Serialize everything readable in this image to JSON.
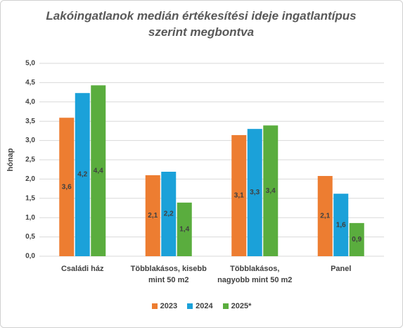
{
  "chart_data": {
    "type": "bar",
    "title": "Lakóingatlanok medián értékesítési ideje ingatlantípus szerint megbontva",
    "ylabel": "hónap",
    "categories": [
      "Családi ház",
      "Többlakásos, kisebb mint 50 m2",
      "Többlakásos, nagyobb mint 50 m2",
      "Panel"
    ],
    "series": [
      {
        "name": "2023",
        "color": "#ed7d31",
        "values": [
          3.59,
          2.1,
          3.14,
          2.08
        ],
        "value_labels": [
          "3,6",
          "2,1",
          "3,1",
          "2,1"
        ]
      },
      {
        "name": "2024",
        "color": "#1ba1d9",
        "values": [
          4.23,
          2.19,
          3.3,
          1.62
        ],
        "value_labels": [
          "4,2",
          "2,2",
          "3,3",
          "1,6"
        ]
      },
      {
        "name": "2025*",
        "color": "#5aad3e",
        "values": [
          4.43,
          1.39,
          3.39,
          0.86
        ],
        "value_labels": [
          "4,4",
          "1,4",
          "3,4",
          "0,9"
        ]
      }
    ],
    "ylim": [
      0,
      5
    ],
    "yticks": [
      {
        "value": 0,
        "label": "0,0"
      },
      {
        "value": 0.5,
        "label": "0,5"
      },
      {
        "value": 1,
        "label": "1,0"
      },
      {
        "value": 1.5,
        "label": "1,5"
      },
      {
        "value": 2,
        "label": "2,0"
      },
      {
        "value": 2.5,
        "label": "2,5"
      },
      {
        "value": 3,
        "label": "3,0"
      },
      {
        "value": 3.5,
        "label": "3,5"
      },
      {
        "value": 4,
        "label": "4,0"
      },
      {
        "value": 4.5,
        "label": "4,5"
      },
      {
        "value": 5,
        "label": "5,0"
      }
    ],
    "grid": true,
    "legend": "bottom"
  }
}
